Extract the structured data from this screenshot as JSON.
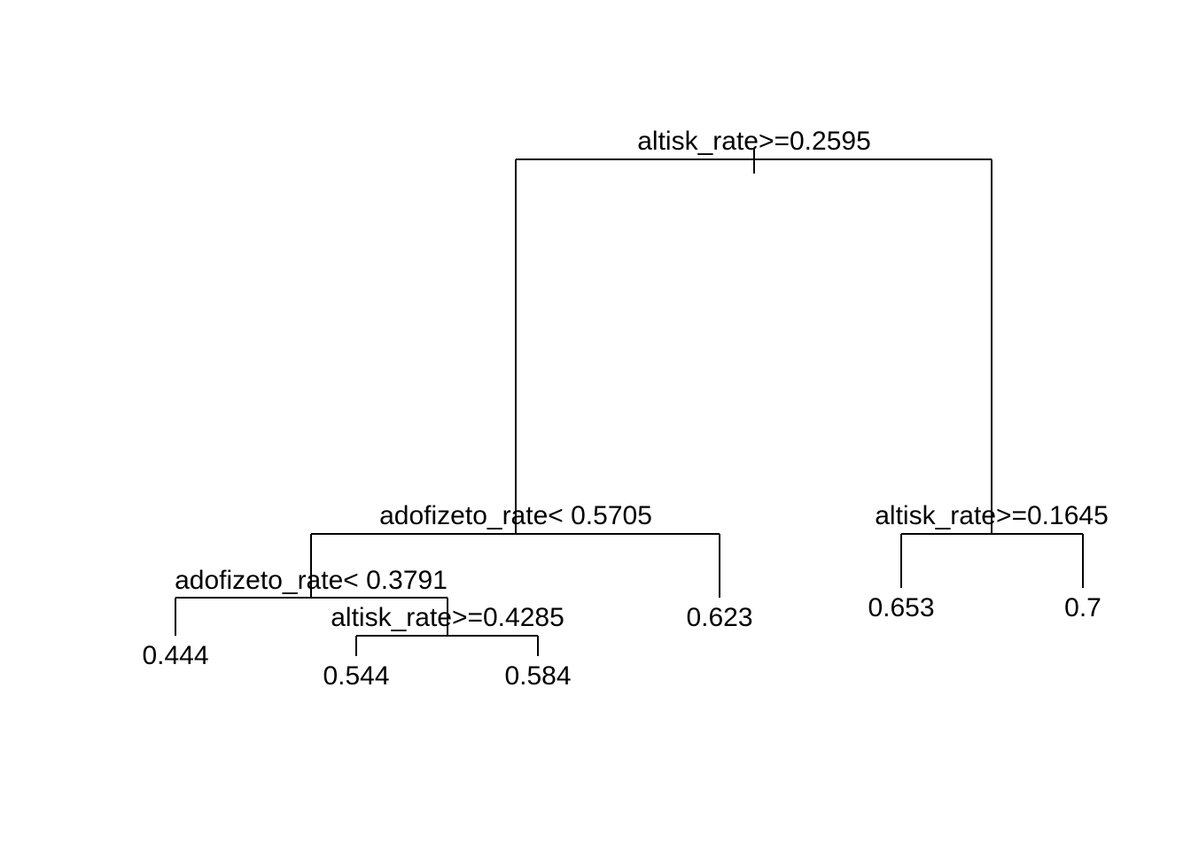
{
  "tree": {
    "root_split": "altisk_rate>=0.2595",
    "left_split": "adofizeto_rate< 0.5705",
    "right_split": "altisk_rate>=0.1645",
    "left_left_split": "adofizeto_rate< 0.3791",
    "left_left_right_split": "altisk_rate>=0.4285",
    "leaves": {
      "leaf_0444": "0.444",
      "leaf_0544": "0.544",
      "leaf_0584": "0.584",
      "leaf_0623": "0.623",
      "leaf_0653": "0.653",
      "leaf_07": "0.7"
    }
  },
  "colors": {
    "line": "#000000",
    "text": "#000000",
    "background": "#ffffff"
  }
}
